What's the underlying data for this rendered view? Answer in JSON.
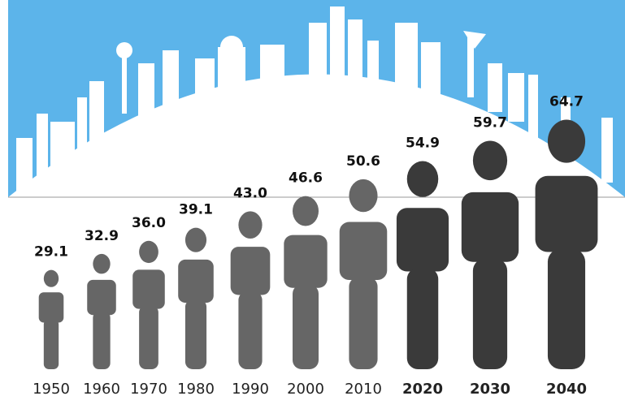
{
  "chart_data": {
    "type": "pictogram",
    "categories": [
      "1950",
      "1960",
      "1970",
      "1980",
      "1990",
      "2000",
      "2010",
      "2020",
      "2030",
      "2040"
    ],
    "values": [
      29.1,
      32.9,
      36.0,
      39.1,
      43.0,
      46.6,
      50.6,
      54.9,
      59.7,
      64.7
    ],
    "value_labels": [
      "29.1",
      "32.9",
      "36.0",
      "39.1",
      "43.0",
      "46.6",
      "50.6",
      "54.9",
      "59.7",
      "64.7"
    ],
    "colors": [
      "#666666",
      "#666666",
      "#666666",
      "#666666",
      "#666666",
      "#666666",
      "#666666",
      "#3a3a3a",
      "#3a3a3a",
      "#3a3a3a"
    ],
    "bold_labels": [
      false,
      false,
      false,
      false,
      false,
      false,
      false,
      true,
      true,
      true
    ]
  }
}
